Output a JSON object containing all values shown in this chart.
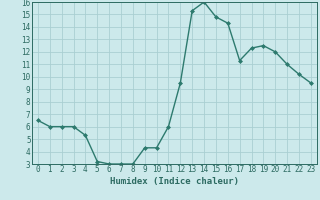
{
  "xlabel": "Humidex (Indice chaleur)",
  "x": [
    0,
    1,
    2,
    3,
    4,
    5,
    6,
    7,
    8,
    9,
    10,
    11,
    12,
    13,
    14,
    15,
    16,
    17,
    18,
    19,
    20,
    21,
    22,
    23
  ],
  "y": [
    6.5,
    6.0,
    6.0,
    6.0,
    5.3,
    3.2,
    3.0,
    3.0,
    3.0,
    4.3,
    4.3,
    6.0,
    9.5,
    15.3,
    16.0,
    14.8,
    14.3,
    11.3,
    12.3,
    12.5,
    12.0,
    11.0,
    10.2,
    9.5
  ],
  "line_color": "#2d7a6e",
  "marker": "D",
  "markersize": 2.0,
  "linewidth": 1.0,
  "bg_color": "#cce9eb",
  "grid_color": "#aacfd2",
  "label_color": "#2d6b62",
  "ylim": [
    3,
    16
  ],
  "xlim": [
    -0.5,
    23.5
  ],
  "yticks": [
    3,
    4,
    5,
    6,
    7,
    8,
    9,
    10,
    11,
    12,
    13,
    14,
    15,
    16
  ],
  "xticks": [
    0,
    1,
    2,
    3,
    4,
    5,
    6,
    7,
    8,
    9,
    10,
    11,
    12,
    13,
    14,
    15,
    16,
    17,
    18,
    19,
    20,
    21,
    22,
    23
  ],
  "xlabel_fontsize": 6.5,
  "tick_fontsize": 5.5
}
